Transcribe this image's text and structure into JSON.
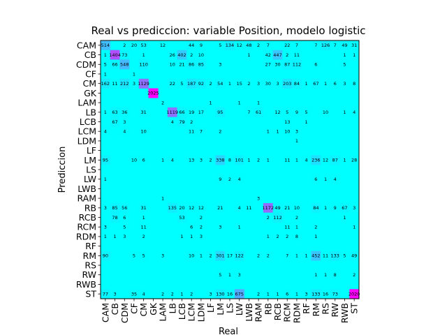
{
  "chart_data": {
    "type": "heatmap",
    "title": "Real vs prediccion: variable Position, modelo logistic",
    "xlabel": "Real",
    "ylabel": "Prediccion",
    "categories": [
      "CAM",
      "CB",
      "CDM",
      "CF",
      "CM",
      "GK",
      "LAM",
      "LB",
      "LCB",
      "LCM",
      "LDM",
      "LF",
      "LM",
      "LS",
      "LW",
      "LWB",
      "RAM",
      "RB",
      "RCB",
      "RCM",
      "RDM",
      "RF",
      "RM",
      "RS",
      "RW",
      "RWB",
      "ST"
    ],
    "colors": {
      "low": "#00ffff",
      "high": "#ff00ff",
      "text": "#000000"
    },
    "max_value": 2025,
    "rows": [
      {
        "pred": "CAM",
        "cells": [
          [
            "CAM",
            514
          ],
          [
            "CDM",
            2
          ],
          [
            "CF",
            20
          ],
          [
            "CM",
            53
          ],
          [
            "LAM",
            12
          ],
          [
            "LCM",
            44
          ],
          [
            "LDM",
            9
          ],
          [
            "LM",
            5
          ],
          [
            "LS",
            134
          ],
          [
            "LW",
            12
          ],
          [
            "LWB",
            48
          ],
          [
            "RAM",
            2
          ],
          [
            "RB",
            7
          ],
          [
            "RCM",
            22
          ],
          [
            "RDM",
            7
          ],
          [
            "RM",
            7
          ],
          [
            "RS",
            126
          ],
          [
            "RW",
            7
          ],
          [
            "RWB",
            49
          ],
          [
            "ST",
            31
          ]
        ]
      },
      {
        "pred": "CB",
        "cells": [
          [
            "CAM",
            1
          ],
          [
            "CB",
            1404
          ],
          [
            "CDM",
            73
          ],
          [
            "CM",
            1
          ],
          [
            "LB",
            26
          ],
          [
            "LCB",
            402
          ],
          [
            "LCM",
            2
          ],
          [
            "LDM",
            10
          ],
          [
            "LWB",
            1
          ],
          [
            "RB",
            42
          ],
          [
            "RCB",
            447
          ],
          [
            "RCM",
            2
          ],
          [
            "RDM",
            11
          ],
          [
            "RWB",
            1
          ],
          [
            "ST",
            1
          ]
        ]
      },
      {
        "pred": "CDM",
        "cells": [
          [
            "CAM",
            5
          ],
          [
            "CB",
            66
          ],
          [
            "CDM",
            548
          ],
          [
            "CM",
            110
          ],
          [
            "LB",
            10
          ],
          [
            "LCB",
            21
          ],
          [
            "LCM",
            86
          ],
          [
            "LDM",
            85
          ],
          [
            "LM",
            3
          ],
          [
            "RB",
            27
          ],
          [
            "RCB",
            30
          ],
          [
            "RCM",
            87
          ],
          [
            "RDM",
            112
          ],
          [
            "RM",
            6
          ],
          [
            "RWB",
            5
          ]
        ]
      },
      {
        "pred": "CF",
        "cells": [
          [
            "CAM",
            1
          ],
          [
            "CF",
            1
          ]
        ]
      },
      {
        "pred": "CM",
        "cells": [
          [
            "CAM",
            162
          ],
          [
            "CB",
            11
          ],
          [
            "CDM",
            212
          ],
          [
            "CF",
            3
          ],
          [
            "CM",
            1129
          ],
          [
            "LB",
            22
          ],
          [
            "LCB",
            5
          ],
          [
            "LCM",
            187
          ],
          [
            "LDM",
            92
          ],
          [
            "LF",
            2
          ],
          [
            "LM",
            54
          ],
          [
            "LS",
            1
          ],
          [
            "LW",
            15
          ],
          [
            "LWB",
            2
          ],
          [
            "RAM",
            3
          ],
          [
            "RB",
            30
          ],
          [
            "RCB",
            3
          ],
          [
            "RCM",
            203
          ],
          [
            "RDM",
            84
          ],
          [
            "RF",
            1
          ],
          [
            "RM",
            67
          ],
          [
            "RS",
            1
          ],
          [
            "RW",
            6
          ],
          [
            "RWB",
            3
          ],
          [
            "ST",
            8
          ]
        ]
      },
      {
        "pred": "GK",
        "cells": [
          [
            "GK",
            2025
          ]
        ]
      },
      {
        "pred": "LAM",
        "cells": [
          [
            "LAM",
            2
          ],
          [
            "LF",
            1
          ],
          [
            "LW",
            1
          ],
          [
            "RAM",
            1
          ]
        ]
      },
      {
        "pred": "LB",
        "cells": [
          [
            "CAM",
            1
          ],
          [
            "CB",
            63
          ],
          [
            "CDM",
            36
          ],
          [
            "CM",
            31
          ],
          [
            "LB",
            1119
          ],
          [
            "LCB",
            66
          ],
          [
            "LCM",
            19
          ],
          [
            "LDM",
            17
          ],
          [
            "LM",
            95
          ],
          [
            "LWB",
            7
          ],
          [
            "RAM",
            61
          ],
          [
            "RCB",
            12
          ],
          [
            "RCM",
            5
          ],
          [
            "RDM",
            9
          ],
          [
            "RF",
            5
          ],
          [
            "RS",
            10
          ],
          [
            "RWB",
            1
          ],
          [
            "ST",
            4
          ]
        ]
      },
      {
        "pred": "LCB",
        "cells": [
          [
            "CB",
            67
          ],
          [
            "CDM",
            3
          ],
          [
            "LB",
            4
          ],
          [
            "LCB",
            79
          ],
          [
            "LCM",
            2
          ],
          [
            "RCM",
            13
          ],
          [
            "RF",
            1
          ]
        ]
      },
      {
        "pred": "LCM",
        "cells": [
          [
            "CAM",
            4
          ],
          [
            "CDM",
            4
          ],
          [
            "CM",
            10
          ],
          [
            "LCM",
            11
          ],
          [
            "LDM",
            7
          ],
          [
            "LM",
            2
          ],
          [
            "RB",
            1
          ],
          [
            "RCB",
            1
          ],
          [
            "RCM",
            10
          ],
          [
            "RDM",
            3
          ]
        ]
      },
      {
        "pred": "LDM",
        "cells": [
          [
            "RDM",
            1
          ]
        ]
      },
      {
        "pred": "LF",
        "cells": []
      },
      {
        "pred": "LM",
        "cells": [
          [
            "CAM",
            95
          ],
          [
            "CF",
            10
          ],
          [
            "CM",
            6
          ],
          [
            "LAM",
            1
          ],
          [
            "LB",
            4
          ],
          [
            "LCM",
            13
          ],
          [
            "LDM",
            3
          ],
          [
            "LF",
            2
          ],
          [
            "LM",
            338
          ],
          [
            "LS",
            8
          ],
          [
            "LW",
            101
          ],
          [
            "LWB",
            1
          ],
          [
            "RAM",
            2
          ],
          [
            "RB",
            1
          ],
          [
            "RCM",
            11
          ],
          [
            "RDM",
            1
          ],
          [
            "RF",
            4
          ],
          [
            "RM",
            236
          ],
          [
            "RS",
            12
          ],
          [
            "RW",
            87
          ],
          [
            "RWB",
            1
          ],
          [
            "ST",
            28
          ]
        ]
      },
      {
        "pred": "LS",
        "cells": []
      },
      {
        "pred": "LW",
        "cells": [
          [
            "CAM",
            1
          ],
          [
            "LM",
            9
          ],
          [
            "LS",
            2
          ],
          [
            "LW",
            4
          ],
          [
            "RM",
            6
          ],
          [
            "RS",
            1
          ],
          [
            "RW",
            4
          ]
        ]
      },
      {
        "pred": "LWB",
        "cells": []
      },
      {
        "pred": "RAM",
        "cells": [
          [
            "LAM",
            1
          ],
          [
            "RAM",
            3
          ]
        ]
      },
      {
        "pred": "RB",
        "cells": [
          [
            "CAM",
            3
          ],
          [
            "CB",
            85
          ],
          [
            "CDM",
            56
          ],
          [
            "CM",
            31
          ],
          [
            "LB",
            135
          ],
          [
            "LCB",
            20
          ],
          [
            "LCM",
            12
          ],
          [
            "LDM",
            12
          ],
          [
            "LM",
            21
          ],
          [
            "LW",
            4
          ],
          [
            "LWB",
            11
          ],
          [
            "RB",
            1172
          ],
          [
            "RCB",
            49
          ],
          [
            "RCM",
            21
          ],
          [
            "RDM",
            10
          ],
          [
            "RM",
            84
          ],
          [
            "RS",
            1
          ],
          [
            "RW",
            9
          ],
          [
            "RWB",
            67
          ],
          [
            "ST",
            3
          ]
        ]
      },
      {
        "pred": "RCB",
        "cells": [
          [
            "CB",
            78
          ],
          [
            "CDM",
            6
          ],
          [
            "CM",
            1
          ],
          [
            "LCB",
            53
          ],
          [
            "LDM",
            2
          ],
          [
            "RB",
            2
          ],
          [
            "RCB",
            112
          ],
          [
            "RDM",
            2
          ],
          [
            "RWB",
            1
          ]
        ]
      },
      {
        "pred": "RCM",
        "cells": [
          [
            "CAM",
            3
          ],
          [
            "CDM",
            5
          ],
          [
            "CM",
            11
          ],
          [
            "LCM",
            6
          ],
          [
            "LDM",
            2
          ],
          [
            "LM",
            3
          ],
          [
            "LW",
            1
          ],
          [
            "RCM",
            11
          ],
          [
            "RDM",
            1
          ],
          [
            "RM",
            2
          ],
          [
            "ST",
            1
          ]
        ]
      },
      {
        "pred": "RDM",
        "cells": [
          [
            "CAM",
            1
          ],
          [
            "CB",
            1
          ],
          [
            "CDM",
            3
          ],
          [
            "CM",
            2
          ],
          [
            "LCB",
            1
          ],
          [
            "LCM",
            1
          ],
          [
            "LDM",
            3
          ],
          [
            "RB",
            1
          ],
          [
            "RCB",
            2
          ],
          [
            "RCM",
            2
          ],
          [
            "RDM",
            8
          ],
          [
            "RM",
            1
          ]
        ]
      },
      {
        "pred": "RF",
        "cells": []
      },
      {
        "pred": "RM",
        "cells": [
          [
            "CAM",
            90
          ],
          [
            "CF",
            5
          ],
          [
            "CM",
            5
          ],
          [
            "LAM",
            3
          ],
          [
            "LCM",
            10
          ],
          [
            "LDM",
            1
          ],
          [
            "LF",
            2
          ],
          [
            "LM",
            301
          ],
          [
            "LS",
            17
          ],
          [
            "LW",
            122
          ],
          [
            "RAM",
            2
          ],
          [
            "RB",
            2
          ],
          [
            "RCM",
            7
          ],
          [
            "RDM",
            1
          ],
          [
            "RF",
            1
          ],
          [
            "RM",
            452
          ],
          [
            "RS",
            11
          ],
          [
            "RW",
            133
          ],
          [
            "RWB",
            5
          ],
          [
            "ST",
            49
          ]
        ]
      },
      {
        "pred": "RS",
        "cells": []
      },
      {
        "pred": "RW",
        "cells": [
          [
            "LM",
            5
          ],
          [
            "LS",
            1
          ],
          [
            "LW",
            3
          ],
          [
            "RM",
            1
          ],
          [
            "RS",
            1
          ],
          [
            "RW",
            8
          ],
          [
            "ST",
            2
          ]
        ]
      },
      {
        "pred": "RWB",
        "cells": []
      },
      {
        "pred": "ST",
        "cells": [
          [
            "CAM",
            77
          ],
          [
            "CB",
            3
          ],
          [
            "CF",
            35
          ],
          [
            "CM",
            4
          ],
          [
            "LAM",
            2
          ],
          [
            "LB",
            2
          ],
          [
            "LCB",
            1
          ],
          [
            "LCM",
            2
          ],
          [
            "LF",
            3
          ],
          [
            "LM",
            130
          ],
          [
            "LS",
            16
          ],
          [
            "LW",
            675
          ],
          [
            "RAM",
            2
          ],
          [
            "RB",
            1
          ],
          [
            "RCB",
            1
          ],
          [
            "RCM",
            6
          ],
          [
            "RDM",
            1
          ],
          [
            "RF",
            3
          ],
          [
            "RM",
            133
          ],
          [
            "RS",
            16
          ],
          [
            "RW",
            73
          ],
          [
            "ST",
            2020
          ]
        ]
      }
    ]
  }
}
